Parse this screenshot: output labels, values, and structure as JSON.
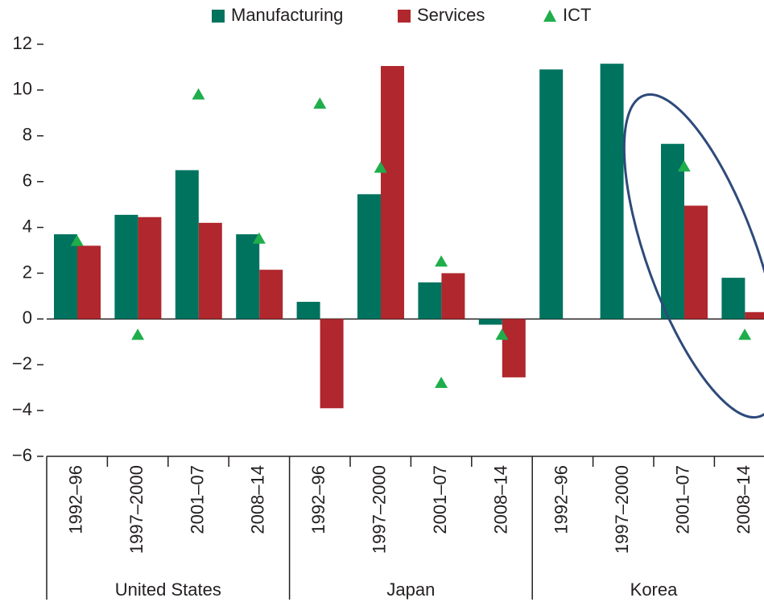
{
  "chart_data": {
    "type": "bar",
    "categories": [
      "1992–96",
      "1997–2000",
      "2001–07",
      "2008–14",
      "1992–96",
      "1997–2000",
      "2001–07",
      "2008–14",
      "1992–96",
      "1997–2000",
      "2001–07",
      "2008–14"
    ],
    "groups": [
      "United States",
      "Japan",
      "Korea"
    ],
    "series": [
      {
        "name": "Manufacturing",
        "color": "#00735f",
        "kind": "bar",
        "values": [
          3.7,
          4.55,
          6.5,
          3.7,
          0.75,
          5.45,
          1.6,
          -0.25,
          10.9,
          11.15,
          7.65,
          1.8
        ]
      },
      {
        "name": "Services",
        "color": "#b0272d",
        "kind": "bar",
        "values": [
          3.2,
          4.45,
          4.2,
          2.15,
          -3.9,
          11.05,
          2.0,
          -2.55,
          null,
          null,
          4.95,
          0.3
        ]
      },
      {
        "name": "ICT",
        "color": "#1fae4b",
        "kind": "marker",
        "values": [
          3.4,
          -0.7,
          9.8,
          3.5,
          9.4,
          6.6,
          2.5,
          -0.7,
          null,
          null,
          6.65,
          -0.7
        ]
      },
      {
        "name": "ICT",
        "color": "#1fae4b",
        "kind": "marker",
        "legend": false,
        "values": [
          null,
          null,
          null,
          null,
          null,
          null,
          -2.8,
          null,
          null,
          null,
          null,
          null
        ]
      }
    ],
    "ylim": [
      -6,
      12
    ],
    "yticks": [
      {
        "value": -6,
        "label": "−6"
      },
      {
        "value": -4,
        "label": "−4"
      },
      {
        "value": -2,
        "label": "−2"
      },
      0,
      2,
      4,
      6,
      8,
      10,
      12
    ]
  }
}
